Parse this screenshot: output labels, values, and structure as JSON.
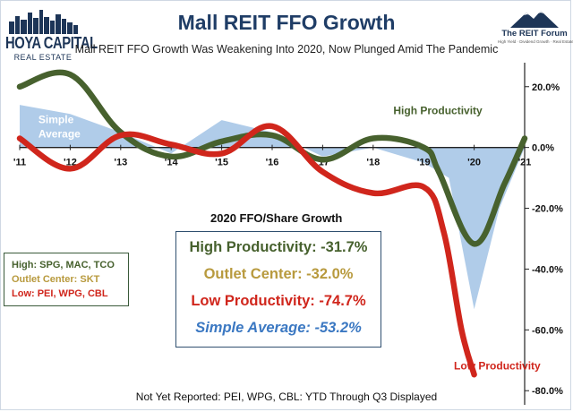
{
  "header": {
    "title": "Mall REIT FFO Growth",
    "subtitle": "Mall REIT FFO Growth Was Weakening Into 2020, Now Plunged Amid The Pandemic",
    "logo_left": {
      "name": "HOYA CAPITAL",
      "sub": "REAL ESTATE"
    },
    "logo_right": {
      "name": "The REIT Forum",
      "tagline": "High Yield · Dividend Growth · Real Estate"
    }
  },
  "legend": {
    "high": "High: SPG, MAC, TCO",
    "outlet": "Outlet Center: SKT",
    "low": "Low: PEI, WPG, CBL"
  },
  "stats": {
    "title": "2020 FFO/Share Growth",
    "high": "High Productivity: -31.7%",
    "outlet": "Outlet Center: -32.0%",
    "low": "Low Productivity: -74.7%",
    "simple": "Simple Average: -53.2%"
  },
  "footnote": "Not Yet Reported: PEI, WPG, CBL: YTD Through Q3 Displayed",
  "colors": {
    "high": "#47612e",
    "outlet": "#b89a3e",
    "low": "#d0261c",
    "simple_text": "#3b78c2",
    "simple_fill": "#a7c7e7",
    "title": "#1f3d66"
  },
  "chart_data": {
    "type": "line",
    "x": [
      2011,
      2012,
      2013,
      2014,
      2015,
      2016,
      2017,
      2018,
      2019,
      2020,
      2021
    ],
    "x_tick_labels": [
      "'11",
      "'12",
      "'13",
      "'14",
      "'15",
      "'16",
      "'17",
      "'18",
      "'19",
      "'20",
      "'21"
    ],
    "y_tick_values": [
      20,
      0,
      -20,
      -40,
      -60,
      -80
    ],
    "y_tick_labels": [
      "20.0%",
      "0.0%",
      "-20.0%",
      "-40.0%",
      "-60.0%",
      "-80.0%"
    ],
    "ylim": [
      -82,
      27
    ],
    "grid": false,
    "series": [
      {
        "name": "Simple Average",
        "kind": "area",
        "x": [
          2011,
          2012,
          2013,
          2014,
          2015,
          2016,
          2017,
          2018,
          2019,
          2019.5,
          2020,
          2020.5,
          2021
        ],
        "values": [
          14,
          11,
          5,
          -2,
          9,
          5,
          -3,
          0,
          -5,
          -10,
          -53.2,
          -20,
          0
        ]
      },
      {
        "name": "High Productivity",
        "kind": "line",
        "x": [
          2011,
          2012,
          2013,
          2014,
          2015,
          2016,
          2017,
          2018,
          2019,
          2019.3,
          2020,
          2020.6,
          2021
        ],
        "values": [
          20,
          24,
          5,
          -3,
          2,
          4,
          -4,
          3,
          0,
          -8,
          -31.7,
          -12,
          3
        ]
      },
      {
        "name": "Low Productivity",
        "kind": "line",
        "x": [
          2011,
          2012,
          2013,
          2014,
          2015,
          2016,
          2017,
          2018,
          2019,
          2019.4,
          2019.75,
          2020
        ],
        "values": [
          3,
          -7,
          4,
          1,
          -2,
          7,
          -8,
          -15,
          -13,
          -28,
          -60,
          -74.7
        ]
      }
    ],
    "annotations": [
      {
        "text": "Simple Average",
        "x": 2011.3,
        "y": 8
      },
      {
        "text": "High Productivity",
        "x": 2018.4,
        "y": 11
      },
      {
        "text": "Low Productivity",
        "x": 2019.6,
        "y": -73
      }
    ]
  }
}
